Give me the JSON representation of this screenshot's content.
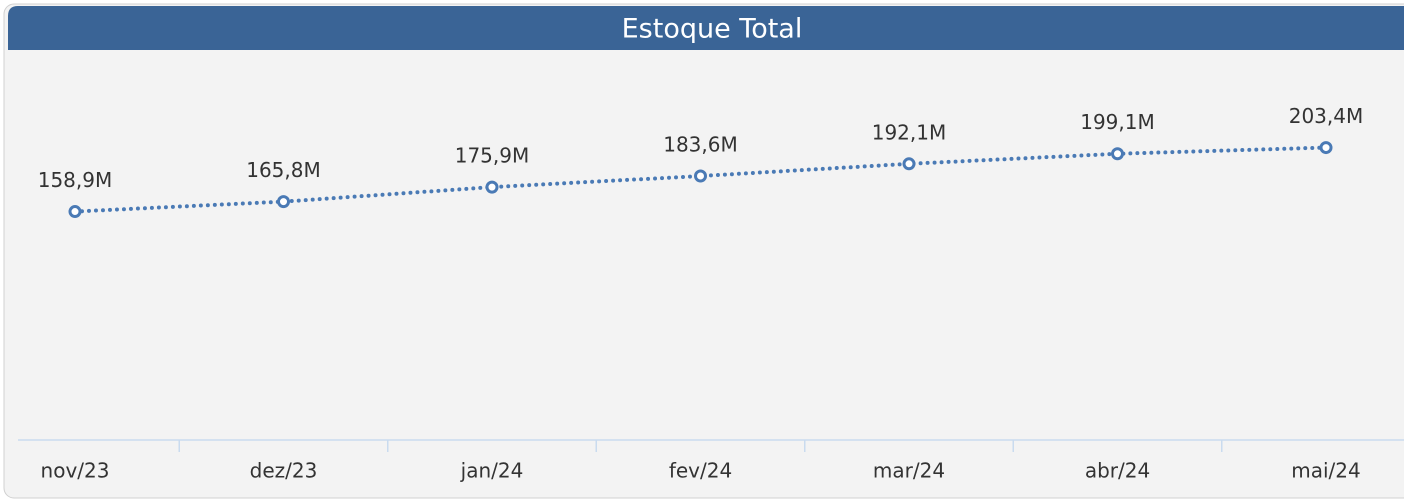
{
  "chart_data": {
    "type": "line",
    "title": "Estoque Total",
    "categories": [
      "nov/23",
      "dez/23",
      "jan/24",
      "fev/24",
      "mar/24",
      "abr/24",
      "mai/24"
    ],
    "values": [
      158.9,
      165.8,
      175.9,
      183.6,
      192.1,
      199.1,
      203.4
    ],
    "value_labels": [
      "158,9M",
      "165,8M",
      "175,9M",
      "183,6M",
      "192,1M",
      "199,1M",
      "203,4M"
    ],
    "color": "#4a7ab5",
    "ylim": [
      0,
      265
    ]
  }
}
